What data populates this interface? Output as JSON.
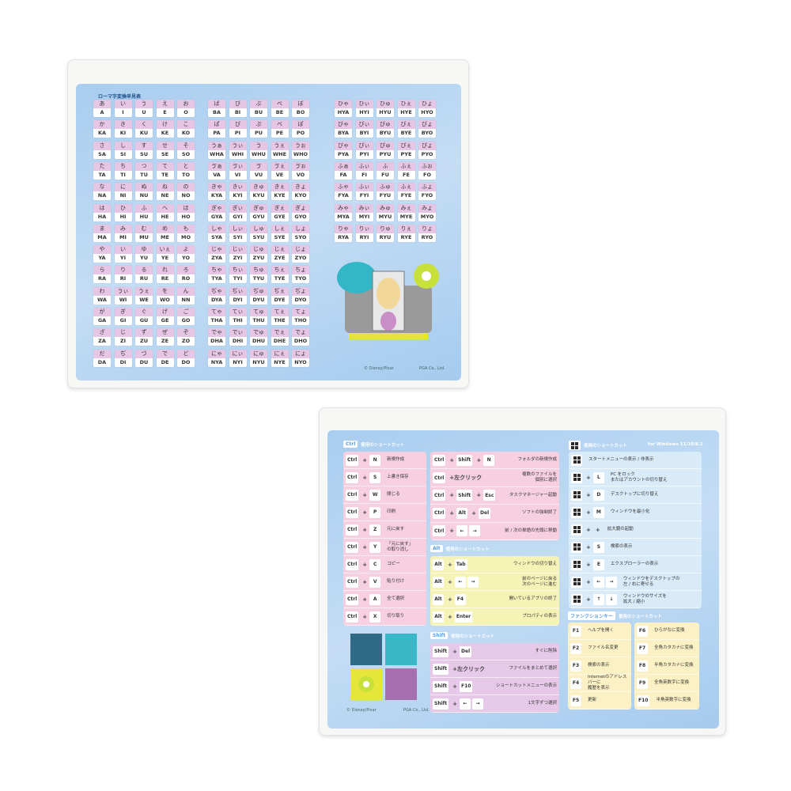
{
  "kana_pad": {
    "title": "ローマ字変換早見表",
    "copyright": "© Disney/Pixar",
    "maker": "PGA Co., Ltd.",
    "groups": [
      [
        [
          [
            "あ",
            "A"
          ],
          [
            "い",
            "I"
          ],
          [
            "う",
            "U"
          ],
          [
            "え",
            "E"
          ],
          [
            "お",
            "O"
          ]
        ],
        [
          [
            "か",
            "KA"
          ],
          [
            "き",
            "KI"
          ],
          [
            "く",
            "KU"
          ],
          [
            "け",
            "KE"
          ],
          [
            "こ",
            "KO"
          ]
        ],
        [
          [
            "さ",
            "SA"
          ],
          [
            "し",
            "SI"
          ],
          [
            "す",
            "SU"
          ],
          [
            "せ",
            "SE"
          ],
          [
            "そ",
            "SO"
          ]
        ],
        [
          [
            "た",
            "TA"
          ],
          [
            "ち",
            "TI"
          ],
          [
            "つ",
            "TU"
          ],
          [
            "て",
            "TE"
          ],
          [
            "と",
            "TO"
          ]
        ],
        [
          [
            "な",
            "NA"
          ],
          [
            "に",
            "NI"
          ],
          [
            "ぬ",
            "NU"
          ],
          [
            "ね",
            "NE"
          ],
          [
            "の",
            "NO"
          ]
        ],
        [
          [
            "は",
            "HA"
          ],
          [
            "ひ",
            "HI"
          ],
          [
            "ふ",
            "HU"
          ],
          [
            "へ",
            "HE"
          ],
          [
            "ほ",
            "HO"
          ]
        ],
        [
          [
            "ま",
            "MA"
          ],
          [
            "み",
            "MI"
          ],
          [
            "む",
            "MU"
          ],
          [
            "め",
            "ME"
          ],
          [
            "も",
            "MO"
          ]
        ],
        [
          [
            "や",
            "YA"
          ],
          [
            "い",
            "YI"
          ],
          [
            "ゆ",
            "YU"
          ],
          [
            "いぇ",
            "YE"
          ],
          [
            "よ",
            "YO"
          ]
        ],
        [
          [
            "ら",
            "RA"
          ],
          [
            "り",
            "RI"
          ],
          [
            "る",
            "RU"
          ],
          [
            "れ",
            "RE"
          ],
          [
            "ろ",
            "RO"
          ]
        ],
        [
          [
            "わ",
            "WA"
          ],
          [
            "うぃ",
            "WI"
          ],
          [
            "うぇ",
            "WE"
          ],
          [
            "を",
            "WO"
          ],
          [
            "ん",
            "NN"
          ]
        ],
        [
          [
            "が",
            "GA"
          ],
          [
            "ぎ",
            "GI"
          ],
          [
            "ぐ",
            "GU"
          ],
          [
            "げ",
            "GE"
          ],
          [
            "ご",
            "GO"
          ]
        ],
        [
          [
            "ざ",
            "ZA"
          ],
          [
            "じ",
            "ZI"
          ],
          [
            "ず",
            "ZU"
          ],
          [
            "ぜ",
            "ZE"
          ],
          [
            "ぞ",
            "ZO"
          ]
        ],
        [
          [
            "だ",
            "DA"
          ],
          [
            "ぢ",
            "DI"
          ],
          [
            "づ",
            "DU"
          ],
          [
            "で",
            "DE"
          ],
          [
            "ど",
            "DO"
          ]
        ]
      ],
      [
        [
          [
            "ば",
            "BA"
          ],
          [
            "び",
            "BI"
          ],
          [
            "ぶ",
            "BU"
          ],
          [
            "べ",
            "BE"
          ],
          [
            "ぼ",
            "BO"
          ]
        ],
        [
          [
            "ぱ",
            "PA"
          ],
          [
            "ぴ",
            "PI"
          ],
          [
            "ぷ",
            "PU"
          ],
          [
            "ぺ",
            "PE"
          ],
          [
            "ぽ",
            "PO"
          ]
        ],
        [
          [
            "うぁ",
            "WHA"
          ],
          [
            "うぃ",
            "WHI"
          ],
          [
            "う",
            "WHU"
          ],
          [
            "うぇ",
            "WHE"
          ],
          [
            "うぉ",
            "WHO"
          ]
        ],
        [
          [
            "ゔぁ",
            "VA"
          ],
          [
            "ゔぃ",
            "VI"
          ],
          [
            "ゔ",
            "VU"
          ],
          [
            "ゔぇ",
            "VE"
          ],
          [
            "ゔぉ",
            "VO"
          ]
        ],
        [
          [
            "きゃ",
            "KYA"
          ],
          [
            "きぃ",
            "KYI"
          ],
          [
            "きゅ",
            "KYU"
          ],
          [
            "きぇ",
            "KYE"
          ],
          [
            "きょ",
            "KYO"
          ]
        ],
        [
          [
            "ぎゃ",
            "GYA"
          ],
          [
            "ぎぃ",
            "GYI"
          ],
          [
            "ぎゅ",
            "GYU"
          ],
          [
            "ぎぇ",
            "GYE"
          ],
          [
            "ぎょ",
            "GYO"
          ]
        ],
        [
          [
            "しゃ",
            "SYA"
          ],
          [
            "しぃ",
            "SYI"
          ],
          [
            "しゅ",
            "SYU"
          ],
          [
            "しぇ",
            "SYE"
          ],
          [
            "しょ",
            "SYO"
          ]
        ],
        [
          [
            "じゃ",
            "ZYA"
          ],
          [
            "じぃ",
            "ZYI"
          ],
          [
            "じゅ",
            "ZYU"
          ],
          [
            "じぇ",
            "ZYE"
          ],
          [
            "じょ",
            "ZYO"
          ]
        ],
        [
          [
            "ちゃ",
            "TYA"
          ],
          [
            "ちぃ",
            "TYI"
          ],
          [
            "ちゅ",
            "TYU"
          ],
          [
            "ちぇ",
            "TYE"
          ],
          [
            "ちょ",
            "TYO"
          ]
        ],
        [
          [
            "ぢゃ",
            "DYA"
          ],
          [
            "ぢぃ",
            "DYI"
          ],
          [
            "ぢゅ",
            "DYU"
          ],
          [
            "ぢぇ",
            "DYE"
          ],
          [
            "ぢょ",
            "DYO"
          ]
        ],
        [
          [
            "てゃ",
            "THA"
          ],
          [
            "てぃ",
            "THI"
          ],
          [
            "てゅ",
            "THU"
          ],
          [
            "てぇ",
            "THE"
          ],
          [
            "てょ",
            "THO"
          ]
        ],
        [
          [
            "でゃ",
            "DHA"
          ],
          [
            "でぃ",
            "DHI"
          ],
          [
            "でゅ",
            "DHU"
          ],
          [
            "でぇ",
            "DHE"
          ],
          [
            "でょ",
            "DHO"
          ]
        ],
        [
          [
            "にゃ",
            "NYA"
          ],
          [
            "にぃ",
            "NYI"
          ],
          [
            "にゅ",
            "NYU"
          ],
          [
            "にぇ",
            "NYE"
          ],
          [
            "にょ",
            "NYO"
          ]
        ]
      ],
      [
        [
          [
            "ひゃ",
            "HYA"
          ],
          [
            "ひぃ",
            "HYI"
          ],
          [
            "ひゅ",
            "HYU"
          ],
          [
            "ひぇ",
            "HYE"
          ],
          [
            "ひょ",
            "HYO"
          ]
        ],
        [
          [
            "びゃ",
            "BYA"
          ],
          [
            "びぃ",
            "BYI"
          ],
          [
            "びゅ",
            "BYU"
          ],
          [
            "びぇ",
            "BYE"
          ],
          [
            "びょ",
            "BYO"
          ]
        ],
        [
          [
            "ぴゃ",
            "PYA"
          ],
          [
            "ぴぃ",
            "PYI"
          ],
          [
            "ぴゅ",
            "PYU"
          ],
          [
            "ぴぇ",
            "PYE"
          ],
          [
            "ぴょ",
            "PYO"
          ]
        ],
        [
          [
            "ふぁ",
            "FA"
          ],
          [
            "ふぃ",
            "FI"
          ],
          [
            "ふ",
            "FU"
          ],
          [
            "ふぇ",
            "FE"
          ],
          [
            "ふぉ",
            "FO"
          ]
        ],
        [
          [
            "ふゃ",
            "FYA"
          ],
          [
            "ふぃ",
            "FYI"
          ],
          [
            "ふゅ",
            "FYU"
          ],
          [
            "ふぇ",
            "FYE"
          ],
          [
            "ふょ",
            "FYO"
          ]
        ],
        [
          [
            "みゃ",
            "MYA"
          ],
          [
            "みぃ",
            "MYI"
          ],
          [
            "みゅ",
            "MYU"
          ],
          [
            "みぇ",
            "MYE"
          ],
          [
            "みょ",
            "MYO"
          ]
        ],
        [
          [
            "りゃ",
            "RYA"
          ],
          [
            "りぃ",
            "RYI"
          ],
          [
            "りゅ",
            "RYU"
          ],
          [
            "りぇ",
            "RYE"
          ],
          [
            "りょ",
            "RYO"
          ]
        ]
      ]
    ]
  },
  "shortcut_pad": {
    "copyright": "© Disney/Pixar",
    "maker": "PGA Co., Ltd.",
    "ctrl": {
      "tag": "Ctrl",
      "title": "使用のショートカット",
      "rows": [
        {
          "keys": [
            "Ctrl",
            "+",
            "N"
          ],
          "desc": "新規作成"
        },
        {
          "keys": [
            "Ctrl",
            "+",
            "S"
          ],
          "desc": "上書き保存"
        },
        {
          "keys": [
            "Ctrl",
            "+",
            "W"
          ],
          "desc": "閉じる"
        },
        {
          "keys": [
            "Ctrl",
            "+",
            "P"
          ],
          "desc": "印刷"
        },
        {
          "keys": [
            "Ctrl",
            "+",
            "Z"
          ],
          "desc": "元に戻す"
        },
        {
          "keys": [
            "Ctrl",
            "+",
            "Y"
          ],
          "desc": "「元に戻す」\nの取り消し"
        },
        {
          "keys": [
            "Ctrl",
            "+",
            "C"
          ],
          "desc": "コピー"
        },
        {
          "keys": [
            "Ctrl",
            "+",
            "V"
          ],
          "desc": "貼り付け"
        },
        {
          "keys": [
            "Ctrl",
            "+",
            "A"
          ],
          "desc": "全て選択"
        },
        {
          "keys": [
            "Ctrl",
            "+",
            "X"
          ],
          "desc": "切り取り"
        }
      ]
    },
    "ctrl2": {
      "rows": [
        {
          "keys": [
            "Ctrl",
            "+",
            "Shift",
            "+",
            "N"
          ],
          "desc": "フォルダの新規作成"
        },
        {
          "keys": [
            "Ctrl",
            "+左クリック"
          ],
          "desc": "複数のファイルを\n個別に選択"
        },
        {
          "keys": [
            "Ctrl",
            "+",
            "Shift",
            "+",
            "Esc"
          ],
          "desc": "タスクマネージャー起動"
        },
        {
          "keys": [
            "Ctrl",
            "+",
            "Alt",
            "+",
            "Del"
          ],
          "desc": "ソフトの強制終了"
        },
        {
          "keys": [
            "Ctrl",
            "+",
            "←",
            "→"
          ],
          "desc": "前 / 次の単語の先頭に移動"
        }
      ]
    },
    "alt": {
      "tag": "Alt",
      "title": "使用のショートカット",
      "rows": [
        {
          "keys": [
            "Alt",
            "+",
            "Tab"
          ],
          "desc": "ウィンドウの切り替え"
        },
        {
          "keys": [
            "Alt",
            "+",
            "←",
            "→"
          ],
          "desc": "前のページに戻る\n次のページに進む"
        },
        {
          "keys": [
            "Alt",
            "+",
            "F4"
          ],
          "desc": "開いているアプリの終了"
        },
        {
          "keys": [
            "Alt",
            "+",
            "Enter"
          ],
          "desc": "プロパティの表示"
        }
      ]
    },
    "shift": {
      "tag": "Shift",
      "title": "使用のショートカット",
      "rows": [
        {
          "keys": [
            "Shift",
            "+",
            "Del"
          ],
          "desc": "すぐに削除"
        },
        {
          "keys": [
            "Shift",
            "+左クリック"
          ],
          "desc": "ファイルをまとめて選択"
        },
        {
          "keys": [
            "Shift",
            "+",
            "F10"
          ],
          "desc": "ショートカットメニューの表示"
        },
        {
          "keys": [
            "Shift",
            "+",
            "←",
            "→"
          ],
          "desc": "1文字ずつ選択"
        }
      ]
    },
    "windows": {
      "title": "使用のショートカット",
      "version": "for Windows 11/10/8.1",
      "rows": [
        {
          "keys": [
            "WIN"
          ],
          "desc": "スタートメニューの表示 / 非表示"
        },
        {
          "keys": [
            "WIN",
            "+",
            "L"
          ],
          "desc": "PC をロック\nまたはアカウントの切り替え"
        },
        {
          "keys": [
            "WIN",
            "+",
            "D"
          ],
          "desc": "デスクトップに切り替え"
        },
        {
          "keys": [
            "WIN",
            "+",
            "M"
          ],
          "desc": "ウィンドウを最小化"
        },
        {
          "keys": [
            "WIN",
            "+",
            "+"
          ],
          "desc": "拡大鏡の起動"
        },
        {
          "keys": [
            "WIN",
            "+",
            "S"
          ],
          "desc": "検索の表示"
        },
        {
          "keys": [
            "WIN",
            "+",
            "E"
          ],
          "desc": "エクスプローラーの表示"
        },
        {
          "keys": [
            "WIN",
            "+",
            "←",
            "→"
          ],
          "desc": "ウィンドウをデスクトップの\n左 / 右に寄せる"
        },
        {
          "keys": [
            "WIN",
            "+",
            "↑",
            "↓"
          ],
          "desc": "ウィンドウのサイズを\n拡大 / 縮小"
        }
      ]
    },
    "function": {
      "tag": "ファンクションキー",
      "title": "使用のショートカット",
      "left": [
        {
          "keys": [
            "F1"
          ],
          "desc": "ヘルプを開く"
        },
        {
          "keys": [
            "F2"
          ],
          "desc": "ファイル名変更"
        },
        {
          "keys": [
            "F3"
          ],
          "desc": "検索の表示"
        },
        {
          "keys": [
            "F4"
          ],
          "desc": "Internetのアドレスバーに\n履歴を表示"
        },
        {
          "keys": [
            "F5"
          ],
          "desc": "更新"
        }
      ],
      "right": [
        {
          "keys": [
            "F6"
          ],
          "desc": "ひらがなに変換"
        },
        {
          "keys": [
            "F7"
          ],
          "desc": "全角カタカナに変換"
        },
        {
          "keys": [
            "F8"
          ],
          "desc": "半角カタカナに変換"
        },
        {
          "keys": [
            "F9"
          ],
          "desc": "全角英数字に変換"
        },
        {
          "keys": [
            "F10"
          ],
          "desc": "半角英数字に変換"
        }
      ]
    }
  },
  "colors": {
    "ctrl": "#f6cfe0",
    "alt": "#f6f3b6",
    "shift": "#e6c9e8",
    "windows": "#d9ebf9",
    "function": "#fbf1c4",
    "kana_top": "#e6c6e4"
  }
}
